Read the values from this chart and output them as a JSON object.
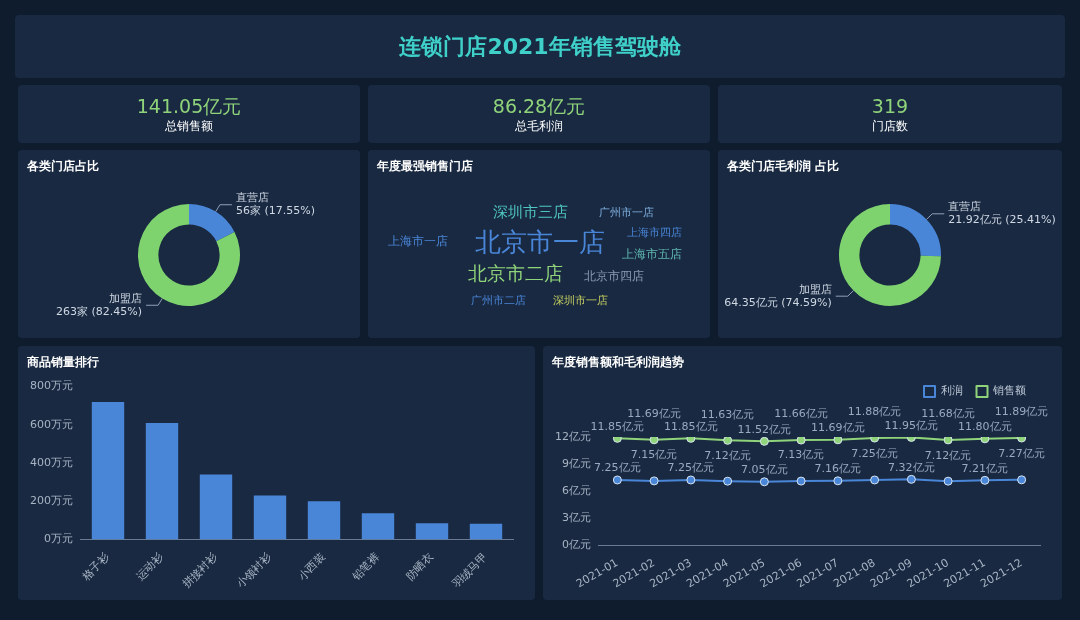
{
  "chart_data": [
    {
      "type": "other",
      "title": "连锁门店2021年销售驾驶舱"
    },
    {
      "type": "other",
      "title": "总销售额",
      "annotations": [
        "141.05亿元"
      ]
    },
    {
      "type": "other",
      "title": "总毛利润",
      "annotations": [
        "86.28亿元"
      ]
    },
    {
      "type": "other",
      "title": "门店数",
      "annotations": [
        "319"
      ]
    },
    {
      "type": "donut",
      "title": "各类门店占比",
      "categories": [
        "直营店",
        "加盟店"
      ],
      "values": [
        56,
        263
      ],
      "colors": [
        "#4a86d8",
        "#7ed36f"
      ],
      "value_labels": [
        "56家 (17.55%)",
        "263家 (82.45%)"
      ]
    },
    {
      "type": "other",
      "title": "年度最强销售门店",
      "categories": [
        "北京市一店",
        "北京市二店",
        "深圳市三店",
        "上海市一店",
        "上海市五店",
        "北京市四店",
        "广州市一店",
        "上海市四店",
        "广州市二店",
        "深圳市一店"
      ]
    },
    {
      "type": "donut",
      "title": "各类门店毛利润 占比",
      "categories": [
        "直营店",
        "加盟店"
      ],
      "values": [
        21.92,
        64.35
      ],
      "colors": [
        "#4a86d8",
        "#7ed36f"
      ],
      "value_labels": [
        "21.92亿元 (25.41%)",
        "64.35亿元 (74.59%)"
      ]
    },
    {
      "type": "bar",
      "title": "商品销量排行",
      "categories": [
        "格子衫",
        "运动衫",
        "拼接衬衫",
        "小领衬衫",
        "小西装",
        "铅笔裤",
        "防晒衣",
        "羽绒马甲"
      ],
      "values": [
        720,
        610,
        340,
        230,
        200,
        138,
        85,
        83
      ],
      "color": "#4a86d8",
      "ylim": [
        0,
        800
      ],
      "yticks": [
        {
          "value": 0,
          "label": "0万元"
        },
        {
          "value": 200,
          "label": "200万元"
        },
        {
          "value": 400,
          "label": "400万元"
        },
        {
          "value": 600,
          "label": "600万元"
        },
        {
          "value": 800,
          "label": "800万元"
        }
      ]
    },
    {
      "type": "line",
      "title": "年度销售额和毛利润趋势",
      "categories": [
        "2021-01",
        "2021-02",
        "2021-03",
        "2021-04",
        "2021-05",
        "2021-06",
        "2021-07",
        "2021-08",
        "2021-09",
        "2021-10",
        "2021-11",
        "2021-12"
      ],
      "ylim": [
        0,
        12
      ],
      "yticks": [
        {
          "value": 0,
          "label": "0亿元"
        },
        {
          "value": 3,
          "label": "3亿元"
        },
        {
          "value": 6,
          "label": "6亿元"
        },
        {
          "value": 9,
          "label": "9亿元"
        },
        {
          "value": 12,
          "label": "12亿元"
        }
      ],
      "legend": "top right",
      "marker": "circle",
      "series": [
        {
          "name": "利润",
          "color": "#4a86d8",
          "values": [
            7.25,
            7.15,
            7.25,
            7.12,
            7.05,
            7.13,
            7.16,
            7.25,
            7.32,
            7.12,
            7.21,
            7.27
          ],
          "value_labels": [
            "7.25亿元",
            "7.15亿元",
            "7.25亿元",
            "7.12亿元",
            "7.05亿元",
            "7.13亿元",
            "7.16亿元",
            "7.25亿元",
            "7.32亿元",
            "7.12亿元",
            "7.21亿元",
            "7.27亿元"
          ]
        },
        {
          "name": "销售额",
          "color": "#8fd37a",
          "values": [
            11.85,
            11.69,
            11.85,
            11.63,
            11.52,
            11.66,
            11.69,
            11.88,
            11.95,
            11.68,
            11.8,
            11.89
          ],
          "value_labels": [
            "11.85亿元",
            "11.69亿元",
            "11.85亿元",
            "11.63亿元",
            "11.52亿元",
            "11.66亿元",
            "11.69亿元",
            "11.88亿元",
            "11.95亿元",
            "11.68亿元",
            "11.80亿元",
            "11.89亿元"
          ]
        }
      ]
    }
  ]
}
